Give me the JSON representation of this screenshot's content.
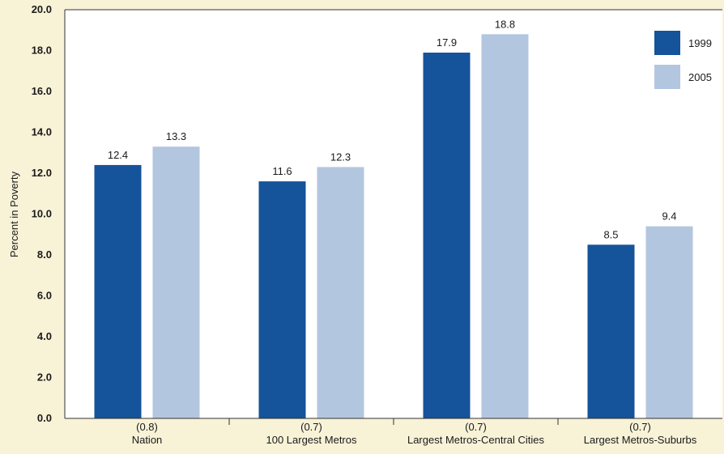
{
  "chart_data": {
    "type": "bar",
    "title": "",
    "xlabel": "",
    "ylabel": "Percent in Poverty",
    "ylim": [
      0,
      20
    ],
    "yticks": [
      "0.0",
      "2.0",
      "4.0",
      "6.0",
      "8.0",
      "10.0",
      "12.0",
      "14.0",
      "16.0",
      "18.0",
      "20.0"
    ],
    "categories": [
      {
        "sub": "(0.8)",
        "name": "Nation"
      },
      {
        "sub": "(0.7)",
        "name": "100 Largest Metros"
      },
      {
        "sub": "(0.7)",
        "name": "Largest Metros-Central Cities"
      },
      {
        "sub": "(0.7)",
        "name": "Largest Metros-Suburbs"
      }
    ],
    "series": [
      {
        "name": "1999",
        "color": "#15539A",
        "values": [
          12.4,
          11.6,
          17.9,
          8.5
        ],
        "labels": [
          "12.4",
          "11.6",
          "17.9",
          "8.5"
        ]
      },
      {
        "name": "2005",
        "color": "#B3C6E0",
        "values": [
          13.3,
          12.3,
          18.8,
          9.4
        ],
        "labels": [
          "13.3",
          "12.3",
          "18.8",
          "9.4"
        ]
      }
    ],
    "legend_position": "top-right",
    "grid": false
  },
  "colors": {
    "background": "#F8F2D7",
    "plot_background": "#FFFFFF",
    "axis": "#333333"
  }
}
